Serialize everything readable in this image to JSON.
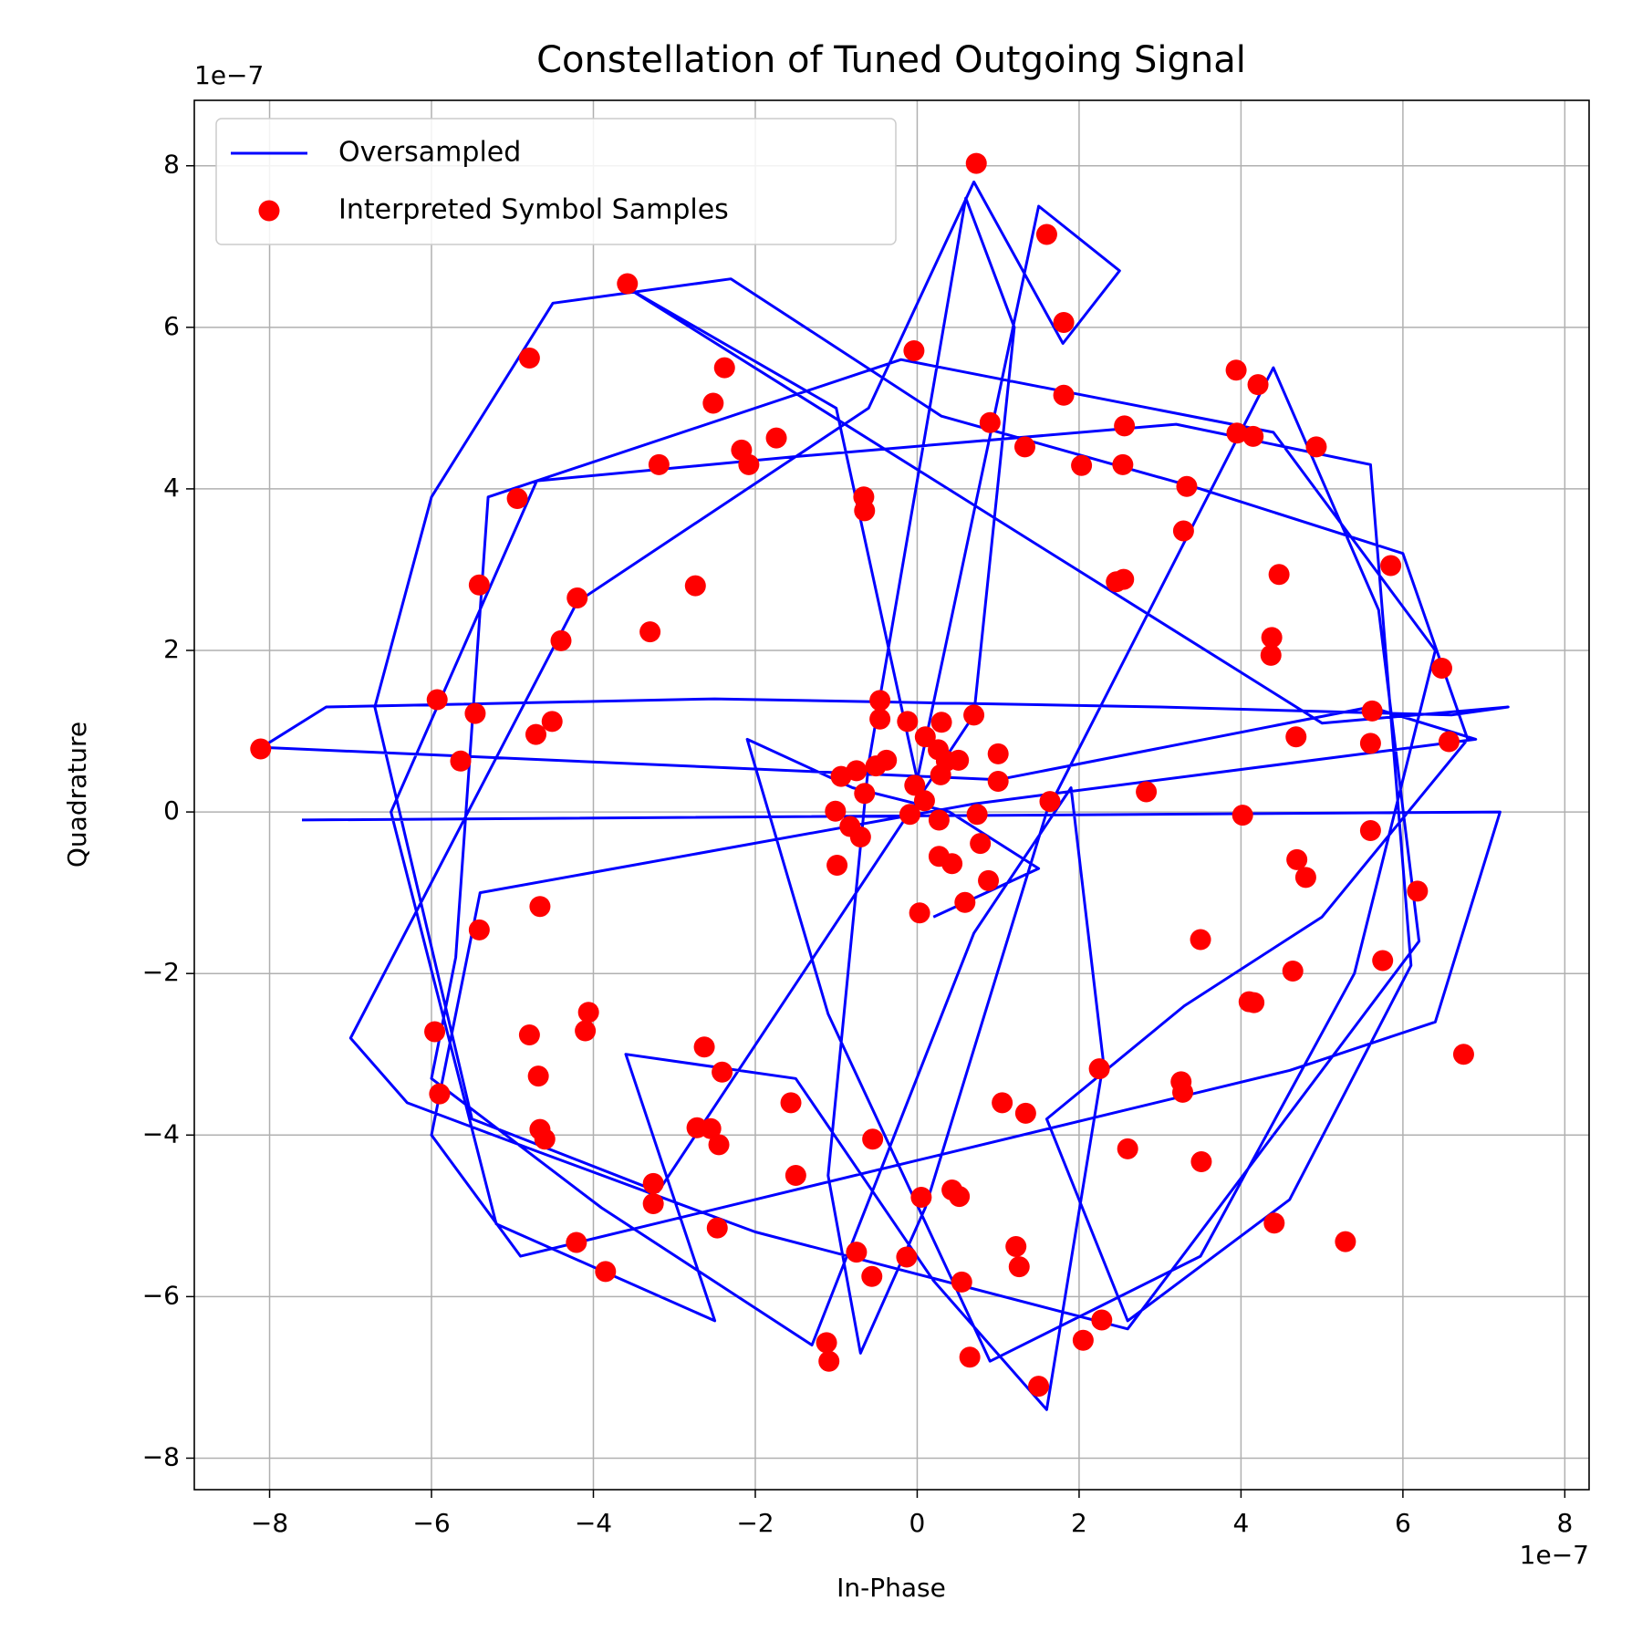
{
  "chart_data": {
    "type": "scatter",
    "title": "Constellation of Tuned Outgoing Signal",
    "xlabel": "In-Phase",
    "ylabel": "Quadrature",
    "x_offset_label": "1e−7",
    "y_offset_label": "1e−7",
    "grid": true,
    "legend": "upper left",
    "xlim": [
      -8.93,
      8.3
    ],
    "ylim": [
      -8.39,
      8.81
    ],
    "xticks": [
      {
        "value": -8,
        "label": "−8"
      },
      {
        "value": -6,
        "label": "−6"
      },
      {
        "value": -4,
        "label": "−4"
      },
      {
        "value": -2,
        "label": "−2"
      },
      0,
      2,
      4,
      6,
      8
    ],
    "yticks": [
      {
        "value": -8,
        "label": "−8"
      },
      {
        "value": -6,
        "label": "−6"
      },
      {
        "value": -4,
        "label": "−4"
      },
      {
        "value": -2,
        "label": "−2"
      },
      0,
      2,
      4,
      6,
      8
    ],
    "series": [
      {
        "name": "Oversampled",
        "type": "line",
        "color": "#0000ff",
        "x": [
          -7.6,
          7.2,
          6.4,
          4.6,
          -4.9,
          -6.0,
          -5.4,
          0.7,
          6.9,
          5.6,
          1.0,
          -8.1,
          -7.3,
          -2.5,
          3.0,
          6.6,
          7.3,
          5.0,
          -3.6,
          -1.0,
          0.0,
          1.5,
          2.5,
          1.8,
          0.7,
          -0.6,
          -4.2,
          -7.0,
          -6.3,
          -4.7,
          -2.0,
          2.6,
          6.2,
          5.7,
          4.4,
          1.6,
          0.1,
          -0.7,
          -1.1,
          -0.6,
          0.6,
          1.2,
          0.7,
          -3.2,
          -5.5,
          -6.7,
          -6.0,
          -4.5,
          -2.3,
          0.3,
          3.5,
          6.0,
          6.8,
          5.0,
          3.3,
          1.6,
          2.6,
          4.6,
          6.1,
          5.6,
          3.2,
          -1.5,
          -4.7,
          -6.5,
          -5.2,
          -2.5,
          -3.6,
          -1.5,
          0.2,
          1.6,
          2.3,
          1.9,
          0.7,
          -1.3,
          -3.9,
          -6.0,
          -5.7,
          -5.3,
          -0.2,
          4.4,
          6.4,
          5.4,
          3.5,
          0.9,
          -1.1,
          -2.1,
          -0.8,
          0.4,
          1.5,
          0.2
        ],
        "y": [
          -0.1,
          0.0,
          -2.6,
          -3.2,
          -5.5,
          -4.0,
          -1.0,
          0.1,
          0.9,
          1.3,
          0.4,
          0.8,
          1.3,
          1.4,
          1.3,
          1.2,
          1.3,
          1.1,
          6.5,
          5.0,
          0.4,
          7.5,
          6.7,
          5.8,
          7.8,
          5.0,
          2.6,
          -2.8,
          -3.6,
          -4.2,
          -5.2,
          -6.4,
          -1.6,
          2.5,
          5.5,
          0.0,
          -4.9,
          -6.7,
          -4.5,
          0.6,
          7.6,
          6.0,
          1.2,
          -4.7,
          -3.8,
          1.3,
          3.9,
          6.3,
          6.6,
          4.9,
          4.0,
          3.2,
          0.9,
          -1.3,
          -2.4,
          -3.8,
          -6.3,
          -4.8,
          -1.9,
          4.3,
          4.8,
          4.4,
          4.1,
          0.0,
          -5.1,
          -6.3,
          -3.0,
          -3.3,
          -5.8,
          -7.4,
          -3.1,
          0.3,
          -1.5,
          -6.6,
          -4.9,
          -3.3,
          -1.8,
          3.9,
          5.6,
          4.7,
          2.0,
          -2.0,
          -5.5,
          -6.8,
          -2.5,
          0.9,
          0.3,
          0.0,
          -0.7,
          -1.3
        ]
      },
      {
        "name": "Interpreted Symbol Samples",
        "type": "scatter",
        "color": "#ff0000",
        "x": [
          0.73,
          1.6,
          1.81,
          -3.58,
          -4.79,
          -0.04,
          -2.38,
          -2.52,
          -2.17,
          -2.08,
          -1.74,
          -3.19,
          0.9,
          1.33,
          1.81,
          2.56,
          2.03,
          2.54,
          3.94,
          4.21,
          3.95,
          4.15,
          4.93,
          3.33,
          3.29,
          -0.66,
          -0.65,
          -4.94,
          -5.41,
          -4.2,
          -4.4,
          -3.3,
          -2.74,
          2.46,
          2.55,
          4.47,
          5.85,
          4.38,
          4.37,
          6.48,
          -5.93,
          -5.46,
          -4.51,
          -4.71,
          -5.64,
          -8.11,
          5.62,
          5.6,
          6.57,
          4.68,
          -0.46,
          -0.46,
          -0.12,
          0.3,
          0.7,
          1.0,
          1.0,
          0.1,
          0.26,
          0.51,
          0.36,
          0.29,
          -0.38,
          -0.51,
          -0.75,
          -0.94,
          -0.65,
          -0.03,
          0.09,
          -0.09,
          0.27,
          -1.01,
          -0.83,
          -0.7,
          -0.99,
          0.74,
          0.78,
          0.27,
          0.43,
          0.88,
          0.59,
          0.03,
          1.64,
          2.83,
          4.02,
          5.6,
          4.69,
          4.8,
          6.18,
          5.75,
          4.64,
          4.1,
          4.16,
          3.5,
          6.75,
          -4.66,
          -5.41,
          -5.96,
          -5.9,
          -4.79,
          -4.06,
          -4.1,
          -4.68,
          -2.63,
          -2.41,
          -1.56,
          2.25,
          3.26,
          3.28,
          1.05,
          1.34,
          2.6,
          3.51,
          4.41,
          5.29,
          -4.66,
          -4.6,
          -2.72,
          -2.55,
          -2.45,
          -0.55,
          -1.5,
          -3.26,
          -3.26,
          -2.47,
          -4.21,
          -3.85,
          0.05,
          0.43,
          0.52,
          -0.75,
          -0.13,
          -0.56,
          1.22,
          1.26,
          0.55,
          2.28,
          2.05,
          -1.12,
          -1.09,
          0.65,
          1.5
        ],
        "y": [
          8.03,
          7.15,
          6.06,
          6.54,
          5.62,
          5.71,
          5.5,
          5.06,
          4.48,
          4.3,
          4.63,
          4.3,
          4.82,
          4.52,
          5.16,
          4.78,
          4.29,
          4.3,
          5.47,
          5.29,
          4.69,
          4.65,
          4.52,
          4.03,
          3.48,
          3.9,
          3.73,
          3.88,
          2.81,
          2.65,
          2.12,
          2.23,
          2.8,
          2.85,
          2.88,
          2.94,
          3.05,
          2.16,
          1.94,
          1.78,
          1.39,
          1.22,
          1.12,
          0.96,
          0.63,
          0.78,
          1.25,
          0.85,
          0.87,
          0.93,
          1.38,
          1.15,
          1.12,
          1.11,
          1.2,
          0.72,
          0.38,
          0.93,
          0.77,
          0.64,
          0.63,
          0.46,
          0.64,
          0.57,
          0.51,
          0.44,
          0.23,
          0.33,
          0.14,
          -0.03,
          -0.1,
          0.01,
          -0.18,
          -0.31,
          -0.66,
          -0.03,
          -0.39,
          -0.55,
          -0.64,
          -0.85,
          -1.12,
          -1.25,
          0.13,
          0.25,
          -0.04,
          -0.23,
          -0.59,
          -0.81,
          -0.98,
          -1.84,
          -1.97,
          -2.35,
          -2.36,
          -1.58,
          -3.0,
          -1.17,
          -1.46,
          -2.72,
          -3.49,
          -2.76,
          -2.48,
          -2.71,
          -3.27,
          -2.91,
          -3.22,
          -3.6,
          -3.18,
          -3.34,
          -3.47,
          -3.6,
          -3.73,
          -4.17,
          -4.33,
          -5.09,
          -5.32,
          -3.93,
          -4.05,
          -3.91,
          -3.92,
          -4.12,
          -4.05,
          -4.5,
          -4.6,
          -4.85,
          -5.15,
          -5.33,
          -5.69,
          -4.77,
          -4.68,
          -4.76,
          -5.45,
          -5.51,
          -5.75,
          -5.38,
          -5.63,
          -5.82,
          -6.29,
          -6.54,
          -6.57,
          -6.8,
          -6.75,
          -7.11
        ]
      }
    ]
  }
}
